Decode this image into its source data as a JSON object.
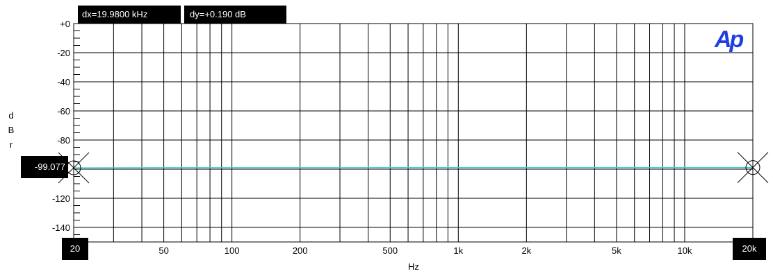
{
  "chart_data": {
    "type": "line",
    "title": "",
    "xlabel": "Hz",
    "ylabel": "dBr",
    "x_scale": "log",
    "xlim": [
      20,
      20000
    ],
    "ylim": [
      -150,
      0
    ],
    "grid": true,
    "x_tick_labels": [
      "50",
      "100",
      "200",
      "500",
      "1k",
      "2k",
      "5k",
      "10k",
      "2"
    ],
    "y_tick_labels": [
      "+0",
      "-20",
      "-40",
      "-60",
      "-80",
      "-120",
      "-140"
    ],
    "series": [
      {
        "color": "#33cccc",
        "x": [
          20,
          50,
          100,
          200,
          500,
          1000,
          2000,
          5000,
          10000,
          20000
        ],
        "y": [
          -99.077,
          -99.0,
          -98.98,
          -99.0,
          -98.95,
          -98.93,
          -98.92,
          -98.9,
          -98.89,
          -98.887
        ]
      }
    ]
  },
  "readouts": {
    "dx": "dx=19.9800 kHz",
    "dy": "dy=+0.190  dB",
    "cursor_y": "-99.077",
    "cursor1_x": "20",
    "cursor2_x": "20k"
  },
  "ylabel_letters": [
    "d",
    "B",
    "r"
  ],
  "logo": "Ap",
  "colors": {
    "trace": "#33cccc",
    "logo": "#1f3fe0",
    "frame": "#000000"
  }
}
